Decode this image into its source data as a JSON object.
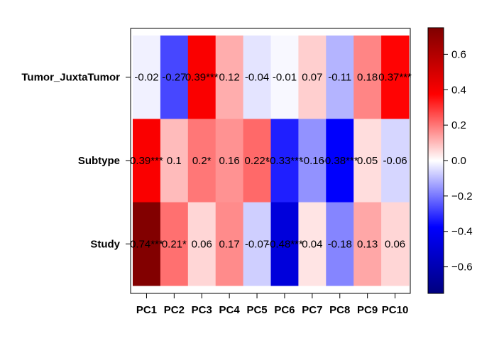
{
  "chart_data": {
    "type": "heatmap",
    "title": "",
    "xlabel": "",
    "ylabel": "",
    "columns": [
      "PC1",
      "PC2",
      "PC3",
      "PC4",
      "PC5",
      "PC6",
      "PC7",
      "PC8",
      "PC9",
      "PC10"
    ],
    "rows": [
      "Tumor_JuxtaTumor",
      "Subtype",
      "Study"
    ],
    "values": [
      [
        -0.02,
        -0.27,
        0.39,
        0.12,
        -0.04,
        -0.01,
        0.07,
        -0.11,
        0.18,
        0.37
      ],
      [
        0.39,
        0.1,
        0.2,
        0.16,
        0.22,
        -0.33,
        -0.16,
        -0.38,
        0.05,
        -0.06
      ],
      [
        0.74,
        0.21,
        0.06,
        0.17,
        -0.07,
        -0.48,
        0.04,
        -0.18,
        0.13,
        0.06
      ]
    ],
    "labels": [
      [
        "-0.02",
        "-0.27",
        "0.39***",
        "0.12",
        "-0.04",
        "-0.01",
        "0.07",
        "-0.11",
        "0.18",
        "0.37***"
      ],
      [
        "0.39***",
        "0.1",
        "0.2*",
        "0.16",
        "0.22*",
        "-0.33***",
        "-0.16",
        "-0.38***",
        "0.05",
        "-0.06"
      ],
      [
        "0.74***",
        "0.21*",
        "0.06",
        "0.17",
        "-0.07",
        "-0.48***",
        "0.04",
        "-0.18",
        "0.13",
        "0.06"
      ]
    ],
    "colorbar": {
      "range": [
        -0.75,
        0.75
      ],
      "ticks": [
        0.6,
        0.4,
        0.2,
        0.0,
        -0.2,
        -0.4,
        -0.6
      ],
      "tick_labels": [
        "0.6",
        "0.4",
        "0.2",
        "0.0",
        "−0.2",
        "−0.4",
        "−0.6"
      ],
      "colors": [
        "#00007f",
        "#0000ff",
        "#ffffff",
        "#ff0000",
        "#7f0000"
      ]
    },
    "legend": "right"
  }
}
